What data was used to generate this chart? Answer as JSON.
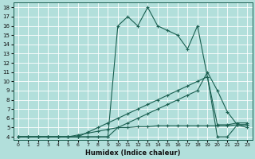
{
  "xlabel": "Humidex (Indice chaleur)",
  "bg_color": "#b2dfdb",
  "grid_color": "#b8d8d4",
  "line_color": "#1a5f50",
  "xlim": [
    -0.5,
    23.5
  ],
  "ylim": [
    3.7,
    18.5
  ],
  "xticks": [
    0,
    1,
    2,
    3,
    4,
    5,
    6,
    7,
    8,
    9,
    10,
    11,
    12,
    13,
    14,
    15,
    16,
    17,
    18,
    19,
    20,
    21,
    22,
    23
  ],
  "yticks": [
    4,
    5,
    6,
    7,
    8,
    9,
    10,
    11,
    12,
    13,
    14,
    15,
    16,
    17,
    18
  ],
  "lines": [
    {
      "x": [
        0,
        1,
        2,
        3,
        4,
        5,
        6,
        7,
        8,
        9,
        10,
        11,
        12,
        13,
        14,
        15,
        16,
        17,
        18,
        19,
        20,
        21,
        22,
        23
      ],
      "y": [
        4,
        4,
        4,
        4,
        4,
        4,
        4,
        4,
        4,
        4,
        16,
        17,
        16,
        18,
        16,
        15.5,
        15,
        13.5,
        16,
        10.5,
        4,
        4,
        5.3,
        5
      ]
    },
    {
      "x": [
        0,
        1,
        2,
        3,
        4,
        5,
        6,
        7,
        8,
        9,
        10,
        11,
        12,
        13,
        14,
        15,
        16,
        17,
        18,
        19,
        20,
        21,
        22,
        23
      ],
      "y": [
        4,
        4,
        4,
        4,
        4,
        4,
        4,
        4,
        4,
        4,
        5,
        5.5,
        6,
        6.5,
        7,
        7.5,
        8,
        8.5,
        9,
        11,
        9,
        6.7,
        5.3,
        5.3
      ]
    },
    {
      "x": [
        0,
        1,
        2,
        3,
        4,
        5,
        6,
        7,
        8,
        9,
        10,
        11,
        12,
        13,
        14,
        15,
        16,
        17,
        18,
        19,
        20,
        21,
        22,
        23
      ],
      "y": [
        4,
        4,
        4,
        4,
        4,
        4,
        4,
        4.5,
        5,
        5.5,
        6,
        6.5,
        7,
        7.5,
        8,
        8.5,
        9,
        9.5,
        10,
        10.5,
        5.3,
        5.3,
        5.5,
        5.5
      ]
    },
    {
      "x": [
        0,
        1,
        2,
        3,
        4,
        5,
        6,
        7,
        8,
        9,
        10,
        11,
        12,
        13,
        14,
        15,
        16,
        17,
        18,
        19,
        20,
        21,
        22,
        23
      ],
      "y": [
        4,
        4,
        4,
        4,
        4,
        4,
        4.2,
        4.4,
        4.6,
        4.8,
        5.0,
        5.0,
        5.1,
        5.1,
        5.2,
        5.2,
        5.2,
        5.2,
        5.2,
        5.2,
        5.2,
        5.2,
        5.3,
        5.3
      ]
    }
  ]
}
